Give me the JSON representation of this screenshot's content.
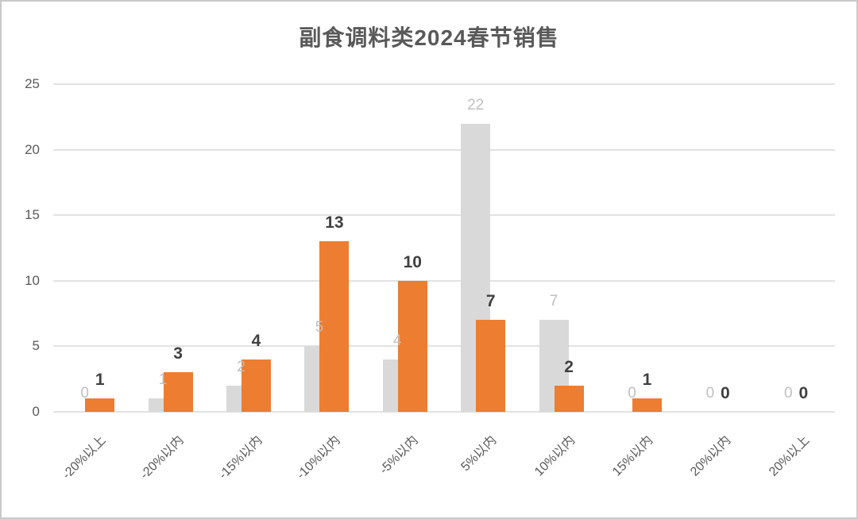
{
  "chart_data": {
    "type": "bar",
    "title": "副食调料类2024春节销售",
    "categories": [
      "-20%以上",
      "-20%以内",
      "-15%以内",
      "-10%以内",
      "-5%以内",
      "5%以内",
      "10%以内",
      "15%以内",
      "20%以内",
      "20%以上"
    ],
    "series": [
      {
        "name": "gray",
        "values": [
          0,
          1,
          2,
          5,
          4,
          22,
          7,
          0,
          0,
          0
        ],
        "bar_color": "#D9D9D9",
        "label_color": "#BFBFBF",
        "label_bold": false
      },
      {
        "name": "orange",
        "values": [
          1,
          3,
          4,
          13,
          10,
          7,
          2,
          1,
          0,
          0
        ],
        "bar_color": "#ED7D31",
        "label_color": "#3F3F3F",
        "label_bold": true
      }
    ],
    "y_ticks": [
      0,
      5,
      10,
      15,
      20,
      25
    ],
    "ylim": [
      0,
      25
    ],
    "xlabel": "",
    "ylabel": "",
    "grid": true,
    "legend_position": "none",
    "axis_text_color": "#595959",
    "gridline_color": "#E2E2E2",
    "title_color": "#595959",
    "background_color": "#FFFFFF",
    "border_color": "#C9C9C9"
  }
}
